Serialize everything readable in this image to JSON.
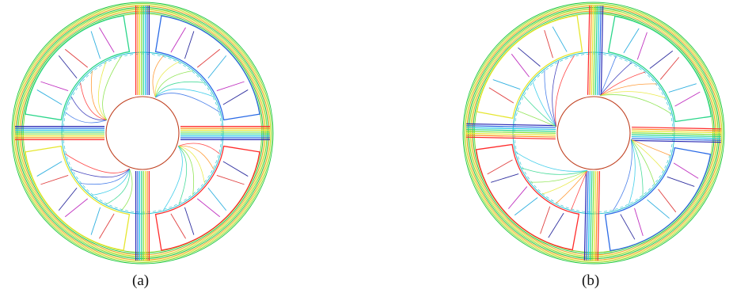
{
  "figure": {
    "panels": [
      {
        "id": "a",
        "caption": "(a)"
      },
      {
        "id": "b",
        "caption": "(b)"
      }
    ]
  },
  "colors": {
    "background": "#ffffff",
    "rim": [
      "#18c83c",
      "#7fd82a",
      "#d8e020",
      "#f0a018"
    ],
    "core_lines": [
      "#ff2a2a",
      "#ff8c1a",
      "#e6e62e",
      "#7ee03a",
      "#2ad68a",
      "#22c6e6",
      "#2a6ae6",
      "#2a2ab4"
    ],
    "winding_lines": [
      "#c030c0",
      "#3030a0",
      "#e04040",
      "#30b0e0"
    ],
    "rotor_circle": "#c04020",
    "airgap_circle": "#20c0d0"
  }
}
